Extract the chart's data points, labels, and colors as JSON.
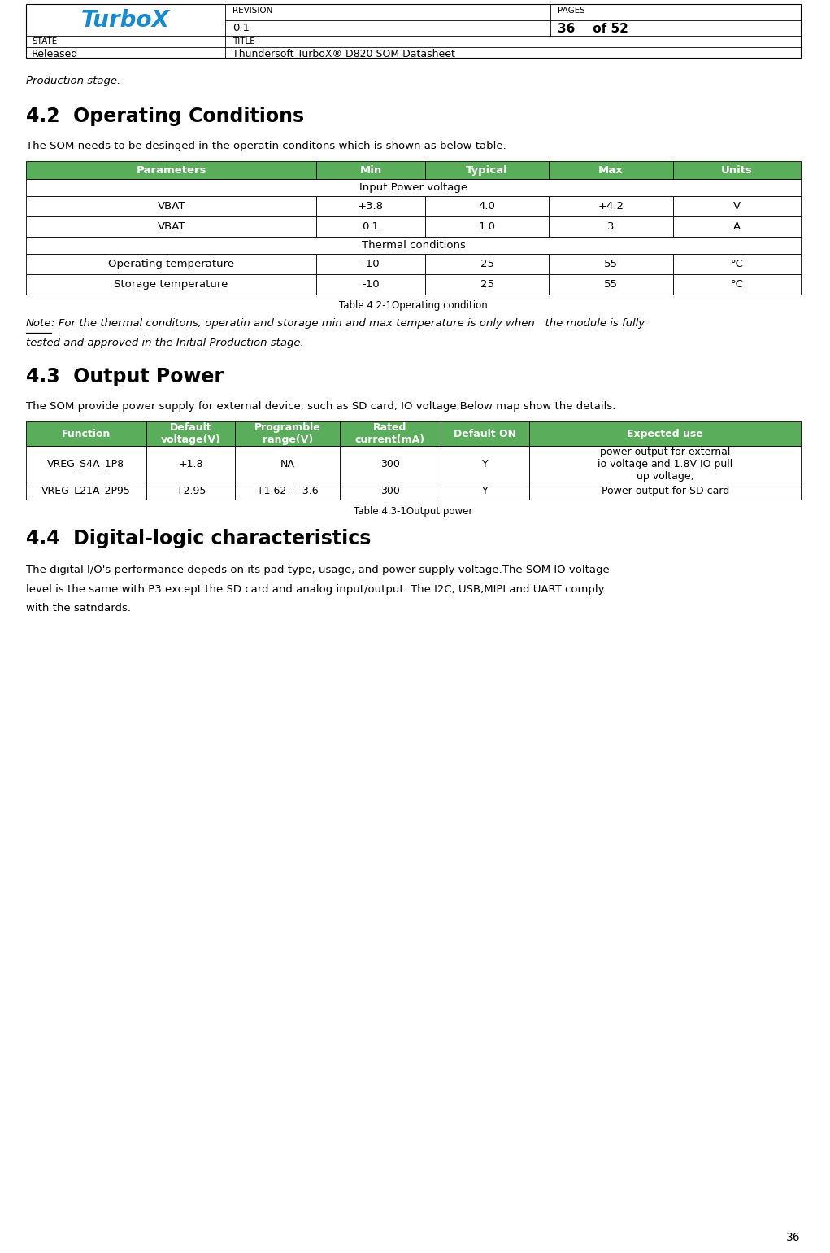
{
  "page_width": 10.21,
  "page_height": 15.4,
  "bg_color": "#ffffff",
  "header": {
    "logo_text": "TurboX",
    "revision_label": "REVISION",
    "revision_value": "0.1",
    "pages_label": "PAGES",
    "pages_value": "36 of 52",
    "state_label": "STATE",
    "title_label": "TITLE",
    "state_value": "Released",
    "title_value": "Thundersoft TurboX® D820 SOM Datasheet"
  },
  "intro_text": "Production stage.",
  "section42_title": "4.2  Operating Conditions",
  "section42_body": "The SOM needs to be desinged in the operatin conditons which is shown as below table.",
  "table42_header": [
    "Parameters",
    "Min",
    "Typical",
    "Max",
    "Units"
  ],
  "table42_header_bg": "#5aad5a",
  "table42_header_color": "#ffffff",
  "table42_subheader_text": [
    "Input Power voltage",
    "Thermal conditions"
  ],
  "table42_data": [
    [
      "VBAT",
      "+3.8",
      "4.0",
      "+4.2",
      "V"
    ],
    [
      "VBAT",
      "0.1",
      "1.0",
      "3",
      "A"
    ],
    [
      "Operating temperature",
      "-10",
      "25",
      "55",
      "°C"
    ],
    [
      "Storage temperature",
      "-10",
      "25",
      "55",
      "°C"
    ]
  ],
  "table42_caption": "Table 4.2-1Operating condition",
  "note42_line1": ": For the thermal conditons, operatin and storage min and max temperature is only when   the module is fully",
  "note42_line2": "tested and approved in the Initial Production stage.",
  "section43_title": "4.3  Output Power",
  "section43_body": "The SOM provide power supply for external device, such as SD card, IO voltage,Below map show the details.",
  "table43_header": [
    "Function",
    "Default\nvoltage(V)",
    "Programble\nrange(V)",
    "Rated\ncurrent(mA)",
    "Default ON",
    "Expected use"
  ],
  "table43_header_bg": "#5aad5a",
  "table43_header_color": "#ffffff",
  "table43_row1": [
    "VREG_S4A_1P8",
    "+1.8",
    "NA",
    "300",
    "Y",
    "power output for external\nio voltage and 1.8V IO pull\nup voltage;"
  ],
  "table43_row2": [
    "VREG_L21A_2P95",
    "+2.95",
    "+1.62--+3.6",
    "300",
    "Y",
    "Power output for SD card"
  ],
  "table43_caption": "Table 4.3-1Output power",
  "section44_title": "4.4  Digital-logic characteristics",
  "section44_line1": "The digital I/O's performance depeds on its pad type, usage, and power supply voltage.The SOM IO voltage",
  "section44_line2": "level is the same with P3 except the SD card and analog input/output. The I2C, USB,MIPI and UART comply",
  "section44_line3": "with the satndards.",
  "page_number": "36",
  "green": "#5aad5a"
}
